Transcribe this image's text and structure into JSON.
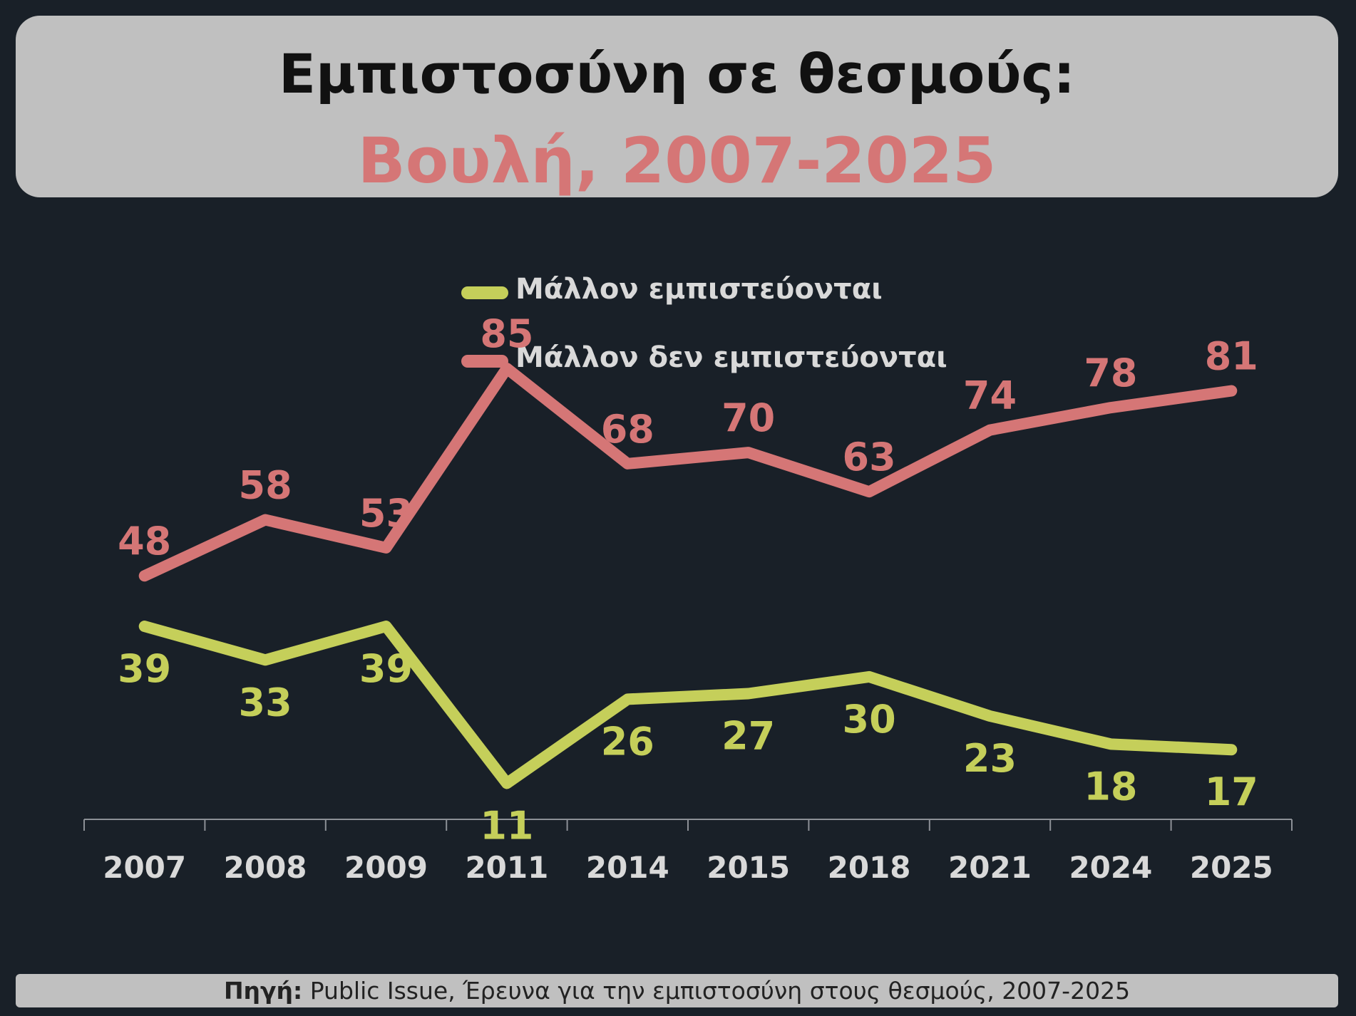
{
  "header": {
    "title_line1": "Εμπιστοσύνη σε θεσμούς:",
    "title_line2": "Βουλή, 2007-2025"
  },
  "footer": {
    "source_label": "Πηγή:",
    "source_text": "Public Issue, Έρευνα για την εμπιστοσύνη στους θεσμούς, 2007-2025"
  },
  "chart_data": {
    "type": "line",
    "categories": [
      "2007",
      "2008",
      "2009",
      "2011",
      "2014",
      "2015",
      "2018",
      "2021",
      "2024",
      "2025"
    ],
    "series": [
      {
        "name": "Μάλλον εμπιστεύονται",
        "color": "#c5cf5a",
        "label_position": "below",
        "values": [
          39,
          33,
          39,
          11,
          26,
          27,
          30,
          23,
          18,
          17
        ]
      },
      {
        "name": "Μάλλον δεν εμπιστεύονται",
        "color": "#d57676",
        "label_position": "above",
        "values": [
          48,
          58,
          53,
          85,
          68,
          70,
          63,
          74,
          78,
          81
        ]
      }
    ],
    "legend": "top-center",
    "grid": false,
    "ylim": [
      0,
      100
    ],
    "xlabel": "",
    "ylabel": ""
  }
}
